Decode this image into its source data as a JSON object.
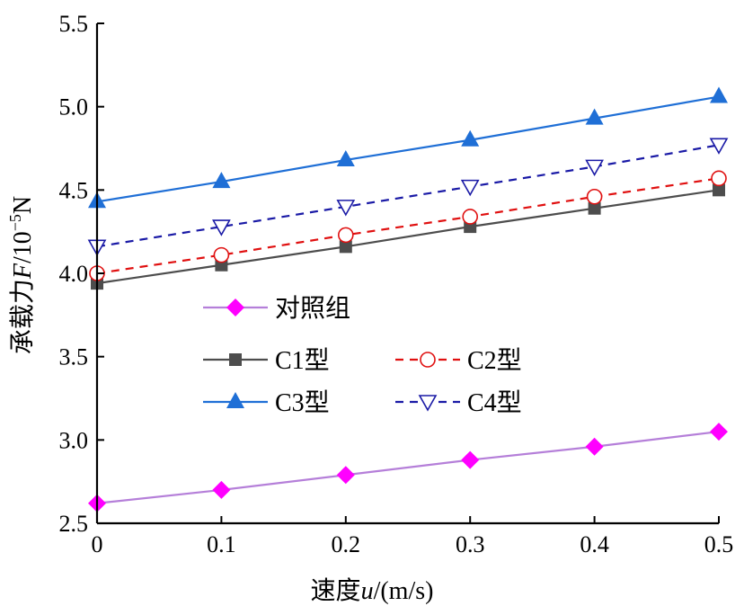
{
  "chart_data": {
    "type": "line",
    "x": [
      0,
      0.1,
      0.2,
      0.3,
      0.4,
      0.5
    ],
    "xlim": [
      0,
      0.5
    ],
    "ylim": [
      2.5,
      5.5
    ],
    "x_ticks": [
      "0",
      "0.1",
      "0.2",
      "0.3",
      "0.4",
      "0.5"
    ],
    "y_ticks": [
      "2.5",
      "3.0",
      "3.5",
      "4.0",
      "4.5",
      "5.0",
      "5.5"
    ],
    "xlabel": "速度u/(m/s)",
    "ylabel": "承载力F/10⁻⁵N",
    "grid": false,
    "legend_position": "center-left",
    "series": [
      {
        "name": "对照组",
        "values": [
          2.62,
          2.7,
          2.79,
          2.88,
          2.96,
          3.05
        ],
        "color": "#b57fd9",
        "marker": "diamond",
        "marker_color": "#ff00ff",
        "dash": "solid"
      },
      {
        "name": "C1型",
        "values": [
          3.94,
          4.05,
          4.16,
          4.28,
          4.39,
          4.5
        ],
        "color": "#4d4d4d",
        "marker": "square",
        "marker_color": "#4d4d4d",
        "dash": "solid"
      },
      {
        "name": "C2型",
        "values": [
          4.0,
          4.11,
          4.23,
          4.34,
          4.46,
          4.57
        ],
        "color": "#e01010",
        "marker": "circle-open",
        "marker_color": "#e01010",
        "dash": "dashed"
      },
      {
        "name": "C3型",
        "values": [
          4.43,
          4.55,
          4.68,
          4.8,
          4.93,
          5.06
        ],
        "color": "#1f6fd6",
        "marker": "triangle-up",
        "marker_color": "#1f6fd6",
        "dash": "solid"
      },
      {
        "name": "C4型",
        "values": [
          4.16,
          4.28,
          4.4,
          4.52,
          4.64,
          4.77
        ],
        "color": "#1a1aa6",
        "marker": "triangle-down-open",
        "marker_color": "#1a1aa6",
        "dash": "dashed"
      }
    ]
  }
}
